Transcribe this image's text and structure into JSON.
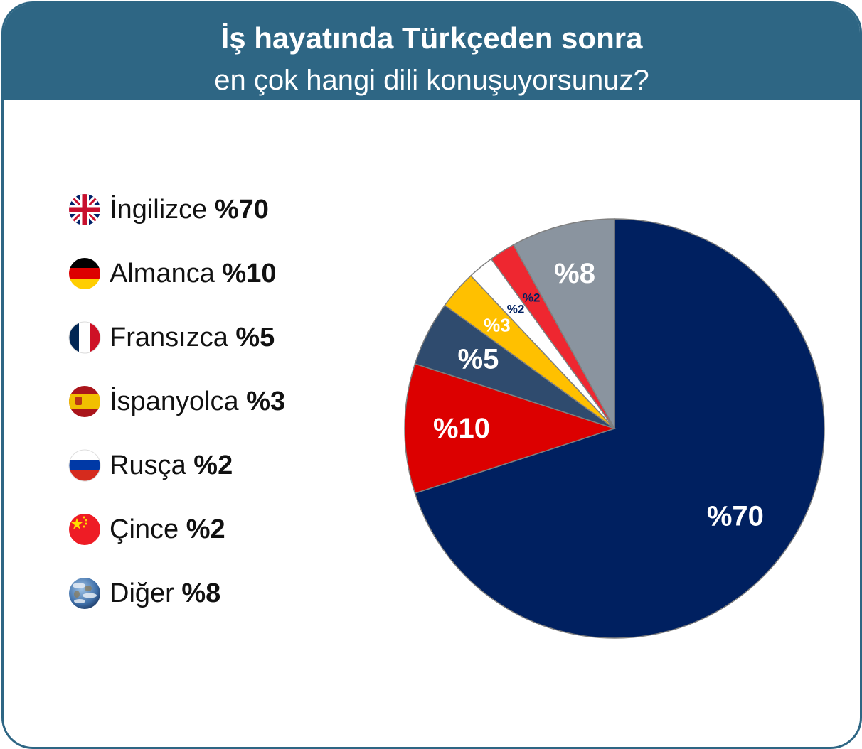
{
  "header": {
    "title": "İş hayatında Türkçeden sonra",
    "subtitle": "en çok hangi dili konuşuyorsunuz?"
  },
  "legend": [
    {
      "name": "İngilizce",
      "value_label": "%70",
      "icon": "uk-flag-icon"
    },
    {
      "name": "Almanca",
      "value_label": "%10",
      "icon": "germany-flag-icon"
    },
    {
      "name": "Fransızca",
      "value_label": "%5",
      "icon": "france-flag-icon"
    },
    {
      "name": "İspanyolca",
      "value_label": "%3",
      "icon": "spain-flag-icon"
    },
    {
      "name": "Rusça",
      "value_label": "%2",
      "icon": "russia-flag-icon"
    },
    {
      "name": "Çince",
      "value_label": "%2",
      "icon": "china-flag-icon"
    },
    {
      "name": "Diğer",
      "value_label": "%8",
      "icon": "earth-globe-icon"
    }
  ],
  "chart_data": {
    "type": "pie",
    "title": "İş hayatında Türkçeden sonra en çok hangi dili konuşuyorsunuz?",
    "start": "12 o'clock, clockwise",
    "categories": [
      "İngilizce",
      "Almanca",
      "Fransızca",
      "İspanyolca",
      "Rusça",
      "Çince",
      "Diğer"
    ],
    "values": [
      70,
      10,
      5,
      3,
      2,
      2,
      8
    ],
    "labels": [
      "%70",
      "%10",
      "%5",
      "%3",
      "%2",
      "%2",
      "%8"
    ],
    "colors": [
      "#002060",
      "#dc0000",
      "#2f4b6e",
      "#ffc000",
      "#ffffff",
      "#ee2730",
      "#8a949f"
    ],
    "label_colors": [
      "#ffffff",
      "#ffffff",
      "#ffffff",
      "#ffffff",
      "#002060",
      "#002060",
      "#ffffff"
    ],
    "legend": "left"
  }
}
